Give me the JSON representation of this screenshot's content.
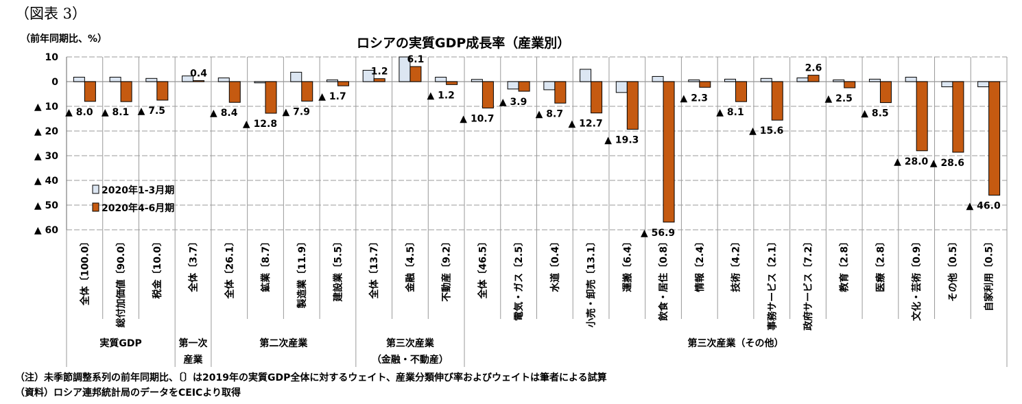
{
  "figure_label": "（図表 3）",
  "note": "（注）未季節調整系列の前年同期比、〔〕は2019年の実質GDP全体に対するウェイト、産業分類伸び率およびウェイトは筆者による試算",
  "source": "（資料）ロシア連邦統計局のデータをCEICより取得",
  "chart_data": {
    "type": "bar",
    "title": "ロシアの実質GDP成長率（産業別）",
    "ylabel": "（前年同期比、%）",
    "ylim": [
      -60,
      10
    ],
    "yticks": [
      10,
      0,
      -10,
      -20,
      -30,
      -40,
      -50,
      -60
    ],
    "ytick_labels": [
      "10",
      "0",
      "▲ 10",
      "▲ 20",
      "▲ 30",
      "▲ 40",
      "▲ 50",
      "▲ 60"
    ],
    "grid": true,
    "legend_position": "left",
    "categories": [
      "全体〔100.0〕",
      "総付加価値〔90.0〕",
      "税金〔10.0〕",
      "全体〔3.7〕",
      "全体〔26.1〕",
      "鉱業〔8.7〕",
      "製造業〔11.9〕",
      "建設業〔5.5〕",
      "全体〔13.7〕",
      "金融〔4.5〕",
      "不動産〔9.2〕",
      "全体〔46.5〕",
      "電気・ガス〔2.5〕",
      "水道〔0.4〕",
      "小売・卸売〔13.1〕",
      "運搬〔6.4〕",
      "飲食・居住〔0.8〕",
      "情報〔2.4〕",
      "技術〔4.2〕",
      "事務サービス〔2.1〕",
      "政府サービス〔7.2〕",
      "教育〔2.8〕",
      "医療〔2.8〕",
      "文化・芸術〔0.9〕",
      "その他〔0.5〕",
      "自家利用〔0.5〕"
    ],
    "groups": [
      {
        "label": "実質GDP",
        "count": 3
      },
      {
        "label": "第一次\n産業",
        "count": 1
      },
      {
        "label": "第二次産業",
        "count": 4
      },
      {
        "label": "第三次産業\n（金融・不動産）",
        "count": 3
      },
      {
        "label": "第三次産業（その他）",
        "count": 15
      }
    ],
    "series": [
      {
        "name": "2020年1-3月期",
        "color": "#dce6f2",
        "values": [
          1.8,
          1.8,
          1.3,
          2.3,
          1.5,
          -0.5,
          3.8,
          0.7,
          4.6,
          10.0,
          1.8,
          0.9,
          -3.0,
          -3.3,
          5.0,
          -4.4,
          2.1,
          0.7,
          1.0,
          1.3,
          1.5,
          0.7,
          1.0,
          1.8,
          -2.1,
          -2.1
        ]
      },
      {
        "name": "2020年4-6月期",
        "color": "#c55a11",
        "values": [
          -8.0,
          -8.1,
          -7.5,
          0.4,
          -8.4,
          -12.8,
          -7.9,
          -1.7,
          1.2,
          6.1,
          -1.2,
          -10.7,
          -3.9,
          -8.7,
          -12.7,
          -19.3,
          -56.9,
          -2.3,
          -8.1,
          -15.6,
          2.6,
          -2.5,
          -8.5,
          -28.0,
          -28.6,
          -46.0
        ]
      }
    ],
    "data_labels": [
      "▲ 8.0",
      "▲ 8.1",
      "▲ 7.5",
      "0.4",
      "▲ 8.4",
      "▲ 12.8",
      "▲ 7.9",
      "▲ 1.7",
      "1.2",
      "6.1",
      "▲ 1.2",
      "▲ 10.7",
      "▲ 3.9",
      "▲ 8.7",
      "▲ 12.7",
      "▲ 19.3",
      "▲ 56.9",
      "▲ 2.3",
      "▲ 8.1",
      "▲ 15.6",
      "2.6",
      "▲ 2.5",
      "▲ 8.5",
      "▲ 28.0",
      "▲ 28.6",
      "▲ 46.0"
    ]
  }
}
